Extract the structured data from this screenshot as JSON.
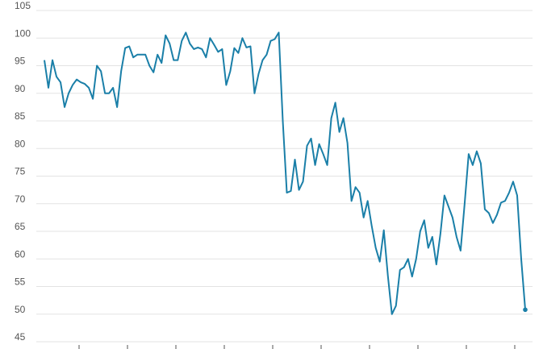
{
  "chart_data": {
    "type": "line",
    "values": [
      96,
      91,
      96,
      93,
      92,
      87.5,
      90,
      91.5,
      92.5,
      92,
      91.7,
      91,
      89,
      95,
      94,
      90,
      90,
      91,
      87.5,
      94,
      98.2,
      98.5,
      96.5,
      97,
      97,
      97,
      95,
      93.8,
      97,
      95.5,
      100.5,
      99,
      96,
      96,
      99.5,
      101,
      99,
      98,
      98.3,
      98,
      96.5,
      100,
      98.8,
      97.5,
      98,
      91.5,
      94,
      98.2,
      97.3,
      100,
      98.3,
      98.5,
      90,
      93.5,
      96,
      97,
      99.5,
      99.8,
      101,
      85,
      72,
      72.3,
      78,
      72.5,
      74,
      80.5,
      81.8,
      77,
      80.8,
      79,
      77,
      85.5,
      88.3,
      83,
      85.5,
      81,
      70.5,
      73,
      72,
      67.5,
      70.5,
      66,
      62,
      59.5,
      65.2,
      57,
      50,
      51.5,
      58,
      58.5,
      60,
      56.8,
      60,
      65,
      67,
      62,
      64,
      59,
      64.5,
      71.5,
      69.5,
      67.5,
      64,
      61.5,
      70,
      79,
      77,
      79.5,
      77.3,
      69,
      68.3,
      66.5,
      68,
      70.2,
      70.5,
      72,
      74,
      71.5,
      60,
      50.8
    ],
    "color": "#1a7fa8",
    "ylim": [
      45,
      105
    ],
    "yticks": [
      45,
      50,
      55,
      60,
      65,
      70,
      75,
      80,
      85,
      90,
      95,
      100,
      105
    ],
    "grid": true
  }
}
